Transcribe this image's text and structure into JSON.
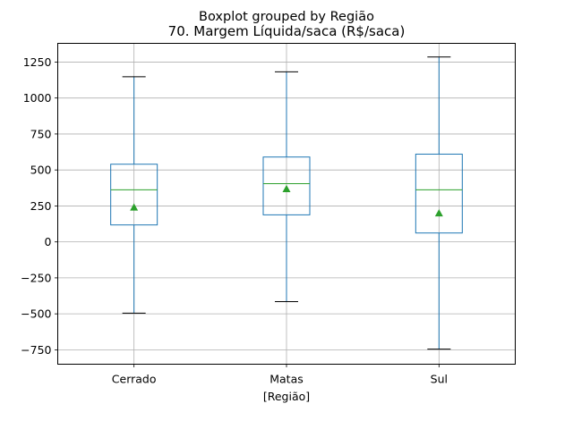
{
  "chart_data": {
    "type": "box",
    "suptitle": "Boxplot grouped by Região",
    "title": "70. Margem Líquida/saca (R$/saca)",
    "xlabel": "[Região]",
    "ylabel": "",
    "categories": [
      "Cerrado",
      "Matas",
      "Sul"
    ],
    "ylim": [
      -850,
      1380
    ],
    "yticks": [
      -750,
      -500,
      -250,
      0,
      250,
      500,
      750,
      1000,
      1250
    ],
    "ytick_labels": [
      "−750",
      "−500",
      "−250",
      "0",
      "250",
      "500",
      "750",
      "1000",
      "1250"
    ],
    "grid": true,
    "boxes": [
      {
        "category": "Cerrado",
        "whisker_low": -495,
        "q1": 118,
        "median": 362,
        "q3": 540,
        "whisker_high": 1148,
        "mean": 240
      },
      {
        "category": "Matas",
        "whisker_low": -415,
        "q1": 188,
        "median": 405,
        "q3": 590,
        "whisker_high": 1182,
        "mean": 368
      },
      {
        "category": "Sul",
        "whisker_low": -745,
        "q1": 62,
        "median": 362,
        "q3": 610,
        "whisker_high": 1285,
        "mean": 200
      }
    ],
    "colors": {
      "box": "#1f77b4",
      "whisker": "#1f77b4",
      "cap": "#000000",
      "median": "#2ca02c",
      "mean": "#2ca02c",
      "grid": "#b0b0b0"
    }
  }
}
